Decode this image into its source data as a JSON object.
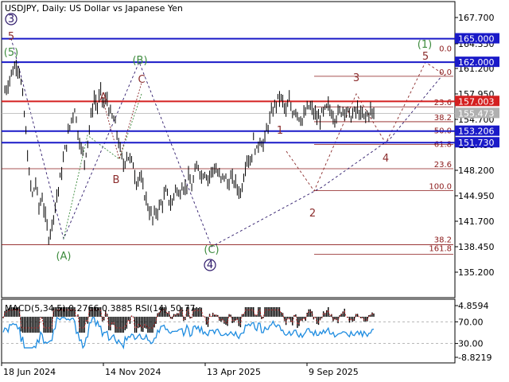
{
  "header": {
    "title": "USDJPY, Daily:  US Dollar vs Japanese Yen"
  },
  "indicator": {
    "title": "MACD(5,34,5) 0.2766 0.3885 RSI(14) 50.77",
    "axis_ticks": [
      "4.8594",
      "70.00",
      "30.00",
      "-8.8219"
    ]
  },
  "colors": {
    "candles": "#000000",
    "resistance": "#d42020",
    "blue_level": "#1a1ac8",
    "fib": "#8b1a1a",
    "wave_red": "#8b2c2c",
    "wave_green": "#3d8b3d",
    "wave_purple": "#2e1a6b",
    "rsi": "#1e8ce0",
    "macd_bar": "#000000"
  },
  "chart_data": {
    "type": "line",
    "title": "USDJPY, Daily:  US Dollar vs Japanese Yen",
    "xlabel": "",
    "ylabel": "",
    "x_ticks": [
      "18 Jun 2024",
      "14 Nov 2024",
      "13 Apr 2025",
      "9 Sep 2025"
    ],
    "y_ticks": [
      "167.700",
      "164.350",
      "161.200",
      "157.950",
      "154.700",
      "151.450",
      "148.200",
      "144.950",
      "141.700",
      "138.450",
      "135.200"
    ],
    "ylim": [
      133.8,
      169.5
    ],
    "grid": false,
    "series": [
      {
        "name": "",
        "x": [
          0,
          3,
          5,
          8,
          10,
          12,
          14,
          16,
          18,
          20,
          22,
          24,
          26,
          28,
          30,
          32,
          34,
          36,
          38,
          40,
          42,
          44,
          46,
          48,
          50,
          52,
          54,
          56,
          58,
          60,
          62,
          64,
          66,
          68,
          70,
          72,
          74,
          76,
          78,
          80,
          82,
          84,
          86,
          88,
          90,
          92,
          94,
          96,
          98,
          100,
          102,
          104,
          106,
          108,
          110,
          112,
          114,
          116,
          118,
          120,
          122,
          124,
          126,
          128,
          130,
          132,
          134,
          136,
          138,
          140,
          142,
          144,
          146,
          148,
          150,
          152,
          154,
          156,
          158,
          160,
          162,
          164,
          166,
          168,
          170,
          172,
          174,
          176,
          178,
          180,
          182,
          184,
          186,
          188,
          190,
          192,
          194,
          196,
          198,
          200,
          202,
          204,
          206,
          208,
          210,
          212,
          214,
          216,
          218,
          220,
          222,
          224,
          226,
          228
        ],
        "values": [
          157.9,
          159.2,
          160.6,
          161.8,
          161.0,
          157.5,
          153.0,
          147.5,
          145.0,
          146.6,
          143.5,
          144.8,
          142.0,
          139.8,
          141.2,
          143.9,
          145.8,
          148.2,
          150.7,
          152.8,
          154.7,
          156.2,
          153.1,
          151.0,
          149.4,
          152.0,
          155.0,
          157.4,
          156.3,
          158.1,
          156.6,
          157.3,
          155.2,
          154.7,
          153.0,
          150.6,
          148.8,
          150.3,
          149.5,
          149.0,
          146.7,
          147.6,
          145.8,
          144.5,
          143.0,
          141.9,
          142.9,
          143.5,
          144.2,
          145.3,
          144.5,
          143.8,
          146.2,
          144.9,
          146.5,
          145.8,
          147.2,
          146.0,
          147.8,
          148.9,
          147.5,
          148.1,
          147.2,
          147.9,
          148.6,
          147.8,
          146.9,
          147.6,
          146.5,
          147.1,
          146.8,
          146.0,
          145.3,
          147.6,
          150.0,
          149.2,
          151.8,
          150.6,
          152.4,
          151.3,
          153.2,
          154.7,
          155.9,
          156.8,
          157.6,
          156.9,
          155.6,
          157.0,
          155.7,
          156.0,
          155.1,
          154.6,
          155.5,
          156.3,
          155.9,
          155.2,
          154.7,
          155.2,
          155.8,
          156.3,
          155.6,
          155.0,
          155.4,
          155.8,
          156.2,
          155.5,
          155.1,
          155.5,
          155.9,
          155.2,
          154.9,
          155.3,
          155.8,
          155.3
        ]
      }
    ],
    "price_levels": [
      {
        "value": 165.0,
        "label": "165.000",
        "kind": "blue"
      },
      {
        "value": 162.0,
        "label": "162.000",
        "kind": "blue"
      },
      {
        "value": 157.003,
        "label": "157.003",
        "kind": "red"
      },
      {
        "value": 155.473,
        "label": "155.473",
        "kind": "current"
      },
      {
        "value": 153.206,
        "label": "153.206",
        "kind": "blue"
      },
      {
        "value": 151.73,
        "label": "151.730",
        "kind": "blue"
      }
    ],
    "fib_labels": [
      "0.0",
      "0.0",
      "23.6",
      "38.2",
      "50.0",
      "61.8",
      "23.6",
      "100.0",
      "38.2",
      "161.8"
    ],
    "wave_labels": {
      "purple": [
        "3",
        "5",
        "4"
      ],
      "green": [
        "(5)",
        "(B)",
        "(A)",
        "(C)",
        "(1)"
      ],
      "red": [
        "A",
        "C",
        "B",
        "1",
        "2",
        "3",
        "4",
        "5"
      ]
    },
    "rsi": {
      "name": "RSI(14)",
      "value": 50.77,
      "levels": [
        70,
        30
      ]
    },
    "macd": {
      "name": "MACD(5,34,5)",
      "main": 0.2766,
      "signal": 0.3885
    }
  }
}
